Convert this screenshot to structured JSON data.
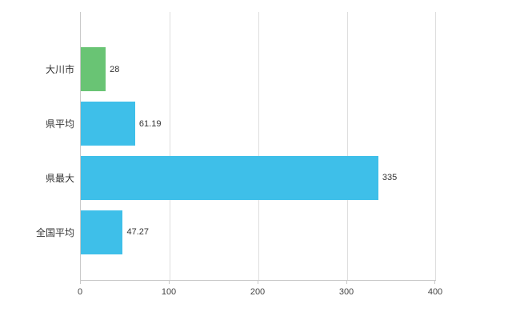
{
  "chart_data": {
    "type": "bar",
    "orientation": "horizontal",
    "title": "",
    "xlabel": "",
    "ylabel": "",
    "categories": [
      "大川市",
      "県平均",
      "県最大",
      "全国平均"
    ],
    "values": [
      28,
      61.19,
      335,
      47.27
    ],
    "value_labels": [
      "28",
      "61.19",
      "335",
      "47.27"
    ],
    "bar_colors": [
      "#69c474",
      "#3ebfe9",
      "#3ebfe9",
      "#3ebfe9"
    ],
    "x_ticks": [
      "0",
      "100",
      "200",
      "300",
      "400"
    ],
    "xlim": [
      0,
      400
    ],
    "grid": "vertical-gridlines",
    "legend": "none",
    "axis_color": "#c9c9c9",
    "gridline_color": "#dedede"
  }
}
